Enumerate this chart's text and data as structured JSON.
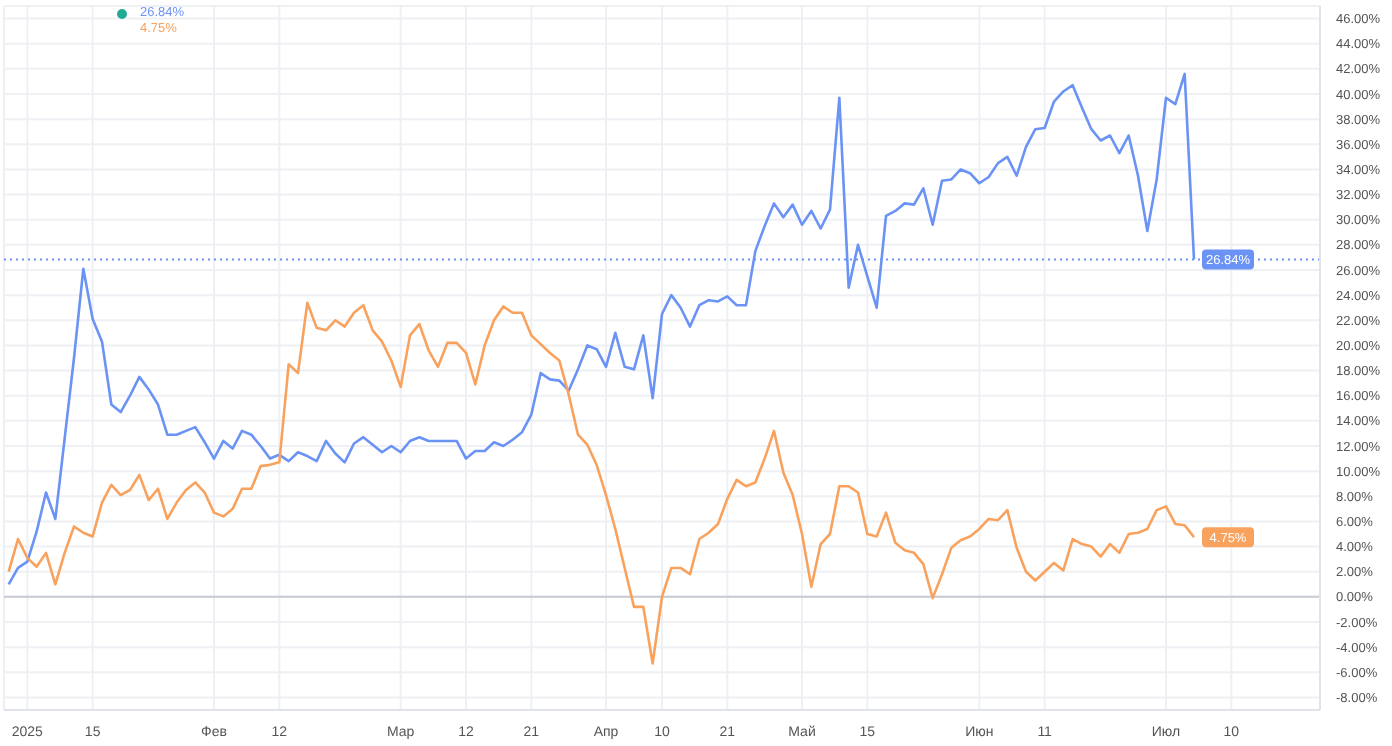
{
  "chart_data": {
    "type": "line",
    "categories": [
      null,
      null,
      "2025",
      null,
      null,
      null,
      null,
      null,
      null,
      "15",
      null,
      null,
      null,
      null,
      null,
      null,
      null,
      null,
      null,
      null,
      null,
      null,
      "Фев",
      null,
      null,
      null,
      null,
      null,
      null,
      "12",
      null,
      null,
      null,
      null,
      null,
      null,
      null,
      null,
      null,
      null,
      null,
      null,
      "Мар",
      null,
      null,
      null,
      null,
      null,
      null,
      "12",
      null,
      null,
      null,
      null,
      null,
      null,
      "21",
      null,
      null,
      null,
      null,
      null,
      null,
      null,
      "Апр",
      null,
      null,
      null,
      null,
      null,
      "10",
      null,
      null,
      null,
      null,
      null,
      null,
      "21",
      null,
      null,
      null,
      null,
      null,
      null,
      null,
      "Май",
      null,
      null,
      null,
      null,
      null,
      null,
      "15",
      null,
      null,
      null,
      null,
      null,
      null,
      null,
      null,
      null,
      null,
      null,
      "Июн",
      null,
      null,
      null,
      null,
      null,
      null,
      "11",
      null,
      null,
      null,
      null,
      null,
      null,
      null,
      null,
      null,
      null,
      null,
      null,
      "Июл",
      null,
      null,
      null,
      null,
      null,
      null,
      "10",
      null,
      null,
      null,
      null,
      null,
      null,
      null,
      null,
      null
    ],
    "series": [
      {
        "color": "#6b93f5",
        "values": [
          1.0,
          2.3,
          2.8,
          5.2,
          8.3,
          6.2,
          12.6,
          19,
          26.1,
          22.1,
          20.3,
          15.3,
          14.7,
          16,
          17.5,
          16.5,
          15.3,
          12.9,
          12.9,
          13.2,
          13.5,
          12.3,
          11.0,
          12.4,
          11.8,
          13.2,
          12.9,
          12.0,
          11.0,
          11.3,
          10.8,
          11.5,
          11.2,
          10.8,
          12.4,
          11.4,
          10.7,
          12.2,
          12.7,
          12.1,
          11.5,
          12,
          11.5,
          12.4,
          12.7,
          12.4,
          12.4,
          12.4,
          12.4,
          11.0,
          11.6,
          11.6,
          12.3,
          12.0,
          12.5,
          13.1,
          14.5,
          17.8,
          17.3,
          17.2,
          16.4,
          18.1,
          20,
          19.7,
          18.3,
          21,
          18.3,
          18.1,
          20.8,
          15.8,
          22.5,
          24,
          23,
          21.5,
          23.2,
          23.6,
          23.5,
          23.9,
          23.2,
          23.2,
          27.5,
          29.5,
          31.3,
          30.2,
          31.2,
          29.6,
          30.7,
          29.3,
          30.8,
          39.7,
          24.6,
          28,
          25.5,
          23,
          30.3,
          30.7,
          31.3,
          31.2,
          32.5,
          29.6,
          33.1,
          33.2,
          34,
          33.7,
          32.9,
          33.4,
          34.5,
          35,
          33.5,
          35.8,
          37.2,
          37.3,
          39.4,
          40.2,
          40.7,
          38.9,
          37.2,
          36.3,
          36.7,
          35.3,
          36.7,
          33.5,
          29.1,
          33.2,
          39.7,
          39.2,
          41.6,
          26.84,
          null,
          null,
          null,
          null,
          null,
          null,
          null,
          null,
          null,
          null,
          null,
          null,
          null
        ],
        "value_labels": [
          null,
          null,
          null,
          null,
          null,
          null,
          null,
          null,
          null,
          null,
          null,
          null,
          null,
          null,
          null,
          null,
          null,
          null,
          null,
          null,
          null,
          null,
          null,
          null,
          null,
          null,
          null,
          null,
          null,
          null,
          null,
          null,
          null,
          null,
          null,
          null,
          null,
          null,
          null,
          null,
          null,
          null,
          null,
          null,
          null,
          null,
          null,
          null,
          null,
          null,
          null,
          null,
          null,
          null,
          null,
          null,
          null,
          null,
          null,
          null,
          null,
          null,
          null,
          null,
          null,
          null,
          null,
          null,
          null,
          null,
          null,
          null,
          null,
          null,
          null,
          null,
          null,
          null,
          null,
          null,
          null,
          null,
          null,
          null,
          null,
          null,
          null,
          null,
          null,
          null,
          null,
          null,
          null,
          null,
          null,
          null,
          null,
          null,
          null,
          null,
          null,
          null,
          null,
          null,
          null,
          null,
          null,
          null,
          null,
          null,
          null,
          null,
          null,
          null,
          null,
          null,
          null,
          null,
          null,
          null,
          null,
          null,
          null,
          null,
          null,
          null,
          null,
          "26.84%",
          null,
          null,
          null,
          null,
          null,
          null,
          null,
          null,
          null,
          null,
          null,
          null,
          null
        ]
      },
      {
        "color": "#f9a25e",
        "values": [
          2.0,
          4.6,
          3.1,
          2.4,
          3.5,
          1.0,
          3.5,
          5.6,
          5.1,
          4.8,
          7.5,
          8.9,
          8.1,
          8.5,
          9.7,
          7.7,
          8.6,
          6.2,
          7.5,
          8.5,
          9.1,
          8.3,
          6.7,
          6.4,
          7.0,
          8.6,
          8.6,
          10.4,
          10.5,
          10.7,
          18.5,
          17.8,
          23.4,
          21.4,
          21.2,
          22,
          21.5,
          22.6,
          23.2,
          21.2,
          20.3,
          18.8,
          16.7,
          20.8,
          21.7,
          19.6,
          18.3,
          20.2,
          20.2,
          19.4,
          16.9,
          20,
          22,
          23.1,
          22.6,
          22.6,
          20.8,
          20.1,
          19.4,
          18.8,
          16.1,
          12.9,
          12.1,
          10.5,
          8.1,
          5.4,
          2.3,
          -0.8,
          -0.8,
          -5.3,
          0,
          2.3,
          2.3,
          1.8,
          4.6,
          5.1,
          5.8,
          7.8,
          9.3,
          8.8,
          9.1,
          11,
          13.2,
          9.9,
          8.1,
          5,
          0.8,
          4.2,
          5,
          8.8,
          8.8,
          8.3,
          5,
          4.8,
          6.7,
          4.3,
          3.7,
          3.5,
          2.6,
          -0.1,
          1.8,
          3.9,
          4.5,
          4.8,
          5.4,
          6.2,
          6.1,
          6.9,
          3.9,
          2.0,
          1.3,
          2.0,
          2.7,
          2.1,
          4.6,
          4.2,
          4.0,
          3.2,
          4.2,
          3.5,
          5.0,
          5.1,
          5.4,
          6.9,
          7.2,
          5.8,
          5.7,
          4.75,
          null,
          null,
          null,
          null,
          null,
          null,
          null,
          null,
          null,
          null,
          null,
          null,
          null
        ],
        "value_labels": [
          null,
          null,
          null,
          null,
          null,
          null,
          null,
          null,
          null,
          null,
          null,
          null,
          null,
          null,
          null,
          null,
          null,
          null,
          null,
          null,
          null,
          null,
          null,
          null,
          null,
          null,
          null,
          null,
          null,
          null,
          null,
          null,
          null,
          null,
          null,
          null,
          null,
          null,
          null,
          null,
          null,
          null,
          null,
          null,
          null,
          null,
          null,
          null,
          null,
          null,
          null,
          null,
          null,
          null,
          null,
          null,
          null,
          null,
          null,
          null,
          null,
          null,
          null,
          null,
          null,
          null,
          null,
          null,
          null,
          null,
          null,
          null,
          null,
          null,
          null,
          null,
          null,
          null,
          null,
          null,
          null,
          null,
          null,
          null,
          null,
          null,
          null,
          null,
          null,
          null,
          null,
          null,
          null,
          null,
          null,
          null,
          null,
          null,
          null,
          null,
          null,
          null,
          null,
          null,
          null,
          null,
          null,
          null,
          null,
          null,
          null,
          null,
          null,
          null,
          null,
          null,
          null,
          null,
          null,
          null,
          null,
          null,
          null,
          null,
          null,
          null,
          null,
          "4.75%",
          null,
          null,
          null,
          null,
          null,
          null,
          null,
          null,
          null,
          null,
          null,
          null,
          null
        ]
      }
    ],
    "ylim": [
      -9,
      47
    ],
    "yticks": [
      {
        "value": -8,
        "label": "-8.00%"
      },
      {
        "value": -6,
        "label": "-6.00%"
      },
      {
        "value": -4,
        "label": "-4.00%"
      },
      {
        "value": -2,
        "label": "-2.00%"
      },
      {
        "value": 0,
        "label": "0.00%"
      },
      {
        "value": 2,
        "label": "2.00%"
      },
      {
        "value": 4,
        "label": "4.00%"
      },
      {
        "value": 6,
        "label": "6.00%"
      },
      {
        "value": 8,
        "label": "8.00%"
      },
      {
        "value": 10,
        "label": "10.00%"
      },
      {
        "value": 12,
        "label": "12.00%"
      },
      {
        "value": 14,
        "label": "14.00%"
      },
      {
        "value": 16,
        "label": "16.00%"
      },
      {
        "value": 18,
        "label": "18.00%"
      },
      {
        "value": 20,
        "label": "20.00%"
      },
      {
        "value": 22,
        "label": "22.00%"
      },
      {
        "value": 24,
        "label": "24.00%"
      },
      {
        "value": 26,
        "label": "26.00%"
      },
      {
        "value": 28,
        "label": "28.00%"
      },
      {
        "value": 30,
        "label": "30.00%"
      },
      {
        "value": 32,
        "label": "32.00%"
      },
      {
        "value": 34,
        "label": "34.00%"
      },
      {
        "value": 36,
        "label": "36.00%"
      },
      {
        "value": 38,
        "label": "38.00%"
      },
      {
        "value": 40,
        "label": "40.00%"
      },
      {
        "value": 42,
        "label": "42.00%"
      },
      {
        "value": 44,
        "label": "44.00%"
      },
      {
        "value": 46,
        "label": "46.00%"
      }
    ],
    "ref_lines": [
      {
        "axis": "y",
        "value": 0,
        "color": "#c8cbd3",
        "line_style": "solid"
      },
      {
        "axis": "y",
        "value": 26.84,
        "color": "#6b93f5",
        "line_style": "dotted"
      }
    ],
    "annotations": [
      "26.84%",
      "4.75%"
    ],
    "grid": true,
    "marker": "none",
    "line_style": "solid"
  }
}
